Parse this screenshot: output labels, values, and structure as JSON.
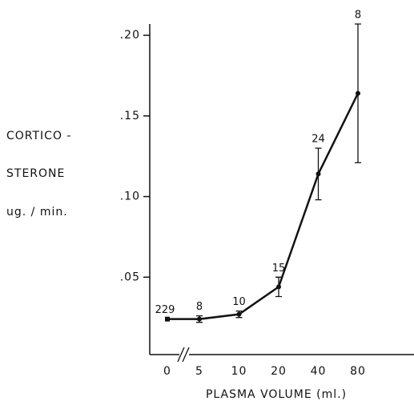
{
  "chart_data": {
    "type": "line",
    "y_label": [
      "CORTICO -",
      "STERONE",
      "ug. / min."
    ],
    "x_label": "PLASMA VOLUME (ml.)",
    "categories": [
      "0",
      "5",
      "10",
      "20",
      "40",
      "80"
    ],
    "values": [
      0.024,
      0.024,
      0.027,
      0.044,
      0.114,
      0.164
    ],
    "errors": [
      null,
      0.002,
      0.002,
      0.006,
      0.016,
      0.043
    ],
    "n_labels": [
      229,
      8,
      10,
      15,
      24,
      8
    ],
    "color": "#111111",
    "ylim": [
      0.002,
      0.207
    ],
    "yticks": [
      {
        "value": 0.05,
        "label": ".05"
      },
      {
        "value": 0.1,
        "label": ".10"
      },
      {
        "value": 0.15,
        "label": ".15"
      },
      {
        "value": 0.2,
        "label": ".20"
      }
    ],
    "grid": false
  }
}
